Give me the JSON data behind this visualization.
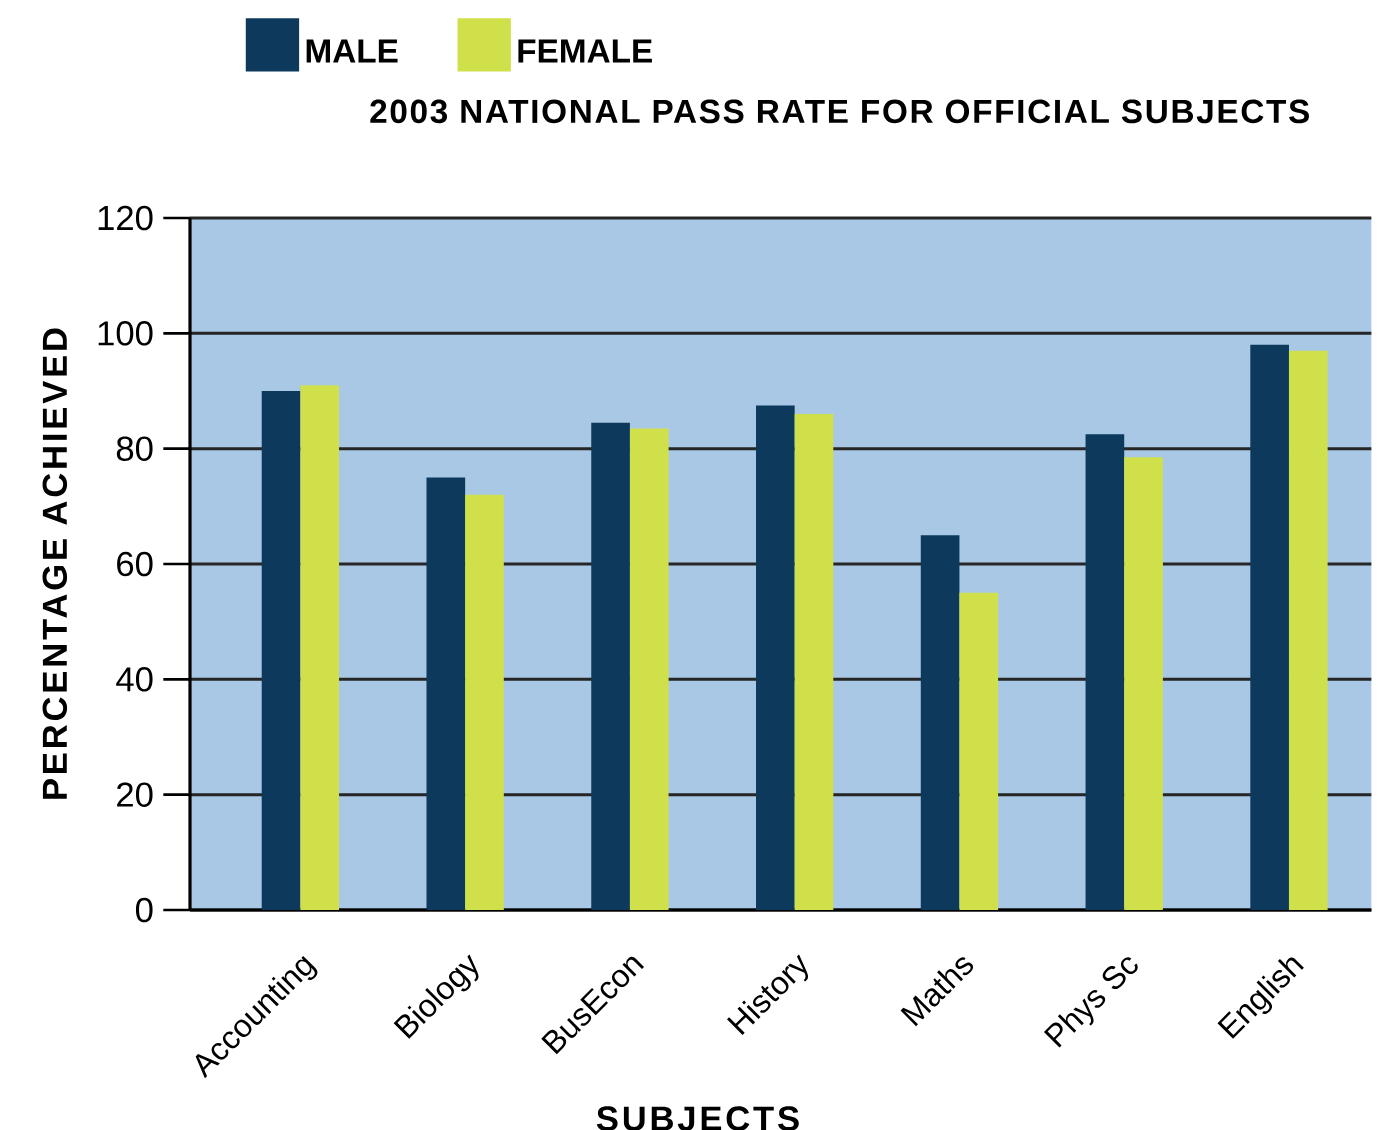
{
  "chart_data": {
    "type": "bar",
    "title": "2003 NATIONAL PASS RATE FOR OFFICIAL SUBJECTS",
    "xlabel": "SUBJECTS",
    "ylabel": "PERCENTAGE ACHIEVED",
    "categories": [
      "Accounting",
      "Biology",
      "BusEcon",
      "History",
      "Maths",
      "Phys Sc",
      "English"
    ],
    "series": [
      {
        "name": "MALE",
        "color": "#0d3a5c",
        "values": [
          90,
          75,
          84.5,
          87.5,
          65,
          82.5,
          98
        ]
      },
      {
        "name": "FEMALE",
        "color": "#cfe04a",
        "values": [
          91,
          72,
          83.5,
          86,
          55,
          78.5,
          97
        ]
      }
    ],
    "ylim": [
      0,
      120
    ],
    "yticks": [
      0,
      20,
      40,
      60,
      80,
      100,
      120
    ],
    "grid": "y",
    "legend": "top left"
  }
}
